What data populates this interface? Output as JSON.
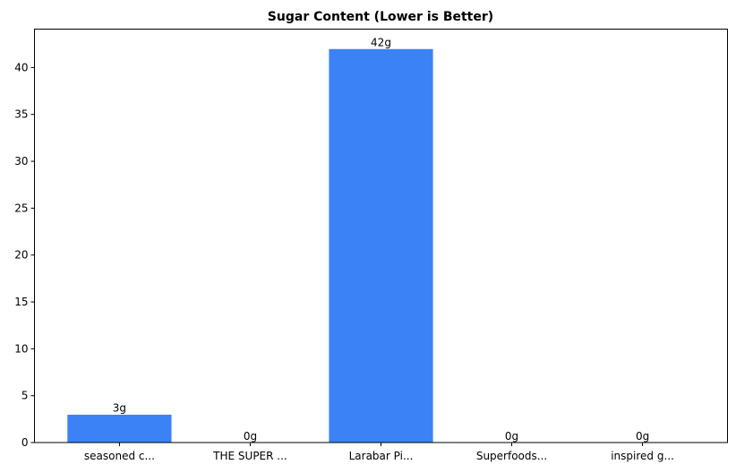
{
  "chart_data": {
    "type": "bar",
    "title": "Sugar Content (Lower is Better)",
    "xlabel": "",
    "ylabel": "",
    "categories": [
      "seasoned c...",
      "THE SUPER ...",
      "Larabar Pi...",
      "Superfoods...",
      "inspired g..."
    ],
    "values": [
      3,
      0,
      42,
      0,
      0
    ],
    "value_labels": [
      "3g",
      "0g",
      "42g",
      "0g",
      "0g"
    ],
    "ylim": [
      0,
      44.1
    ],
    "yticks": [
      0,
      5,
      10,
      15,
      20,
      25,
      30,
      35,
      40
    ],
    "grid": false,
    "legend": null,
    "bar_color": "#3b82f6"
  }
}
